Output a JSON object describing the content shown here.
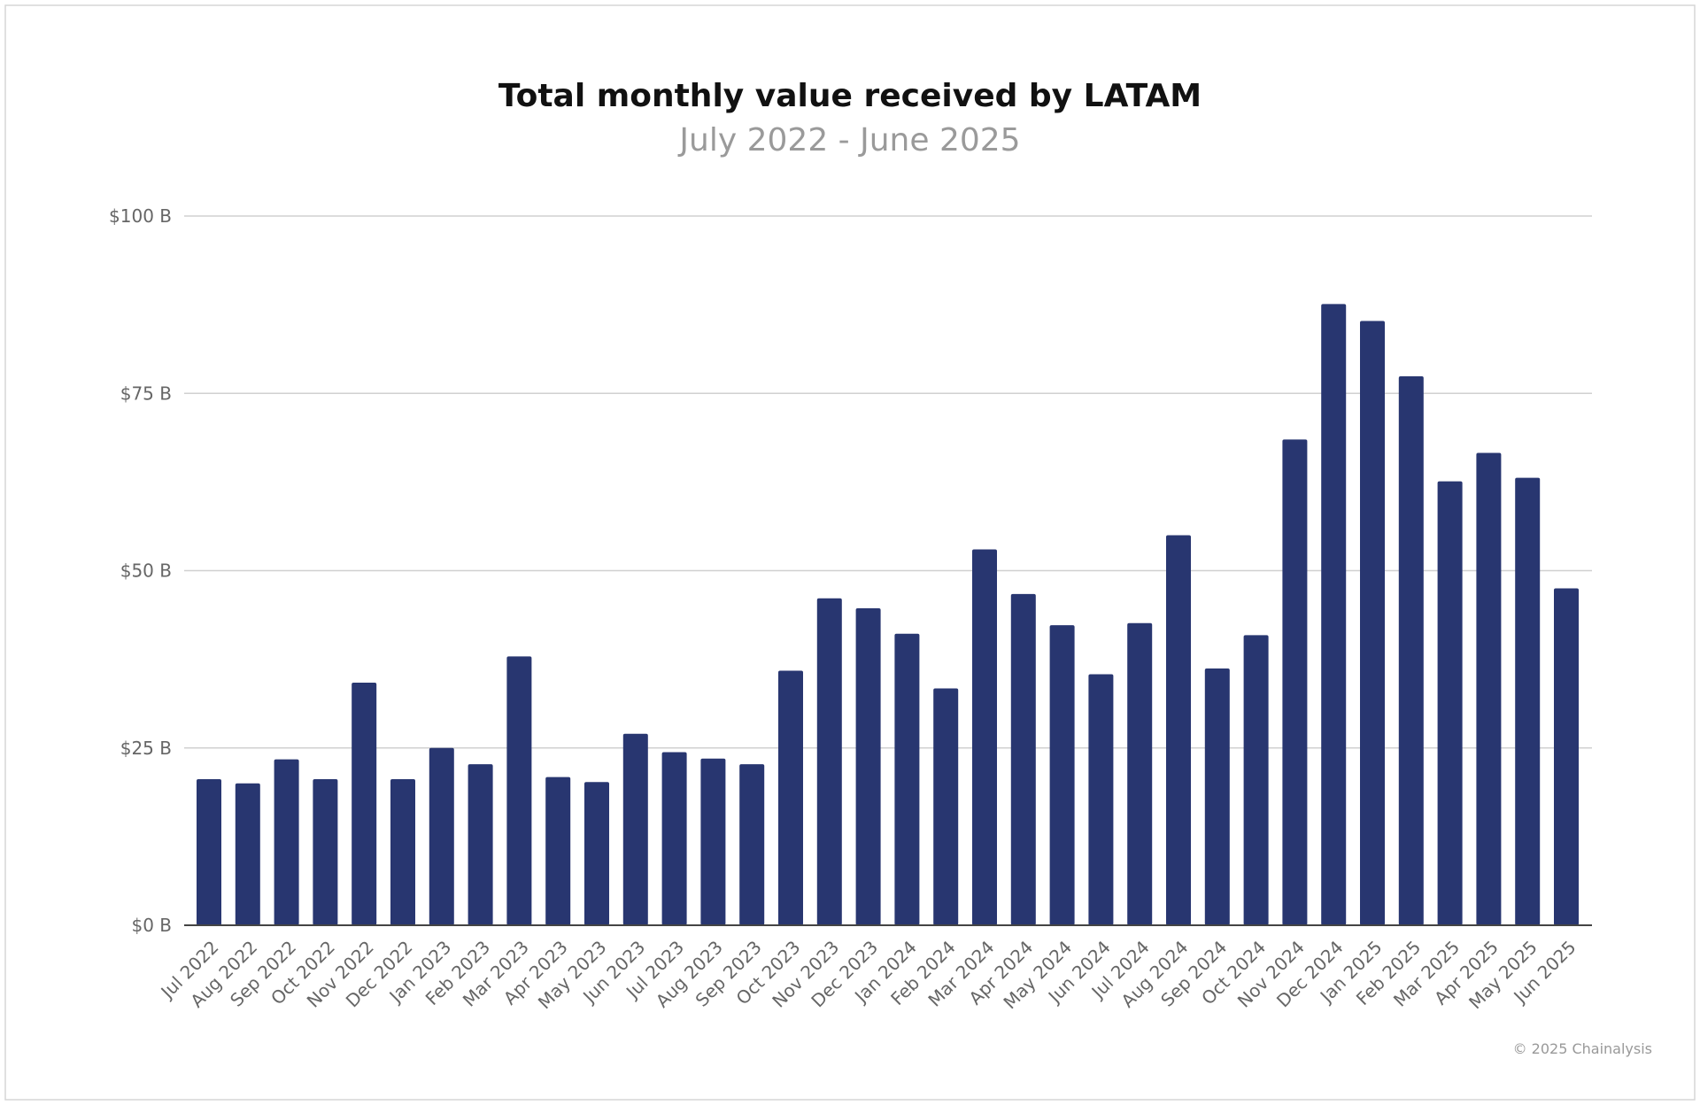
{
  "chart_data": {
    "type": "bar",
    "title": "Total monthly value received by LATAM",
    "subtitle": "July 2022 - June 2025",
    "xlabel": "",
    "ylabel": "",
    "ylim": [
      0,
      100
    ],
    "yticks": [
      0,
      25,
      50,
      75,
      100
    ],
    "ytick_labels": [
      "$0 B",
      "$25 B",
      "$50 B",
      "$75 B",
      "$100 B"
    ],
    "grid": true,
    "bar_color": "#283670",
    "categories": [
      "Jul 2022",
      "Aug 2022",
      "Sep 2022",
      "Oct 2022",
      "Nov 2022",
      "Dec 2022",
      "Jan 2023",
      "Feb 2023",
      "Mar 2023",
      "Apr 2023",
      "May 2023",
      "Jun 2023",
      "Jul 2023",
      "Aug 2023",
      "Sep 2023",
      "Oct 2023",
      "Nov 2023",
      "Dec 2023",
      "Jan 2024",
      "Feb 2024",
      "Mar 2024",
      "Apr 2024",
      "May 2024",
      "Jun 2024",
      "Jul 2024",
      "Aug 2024",
      "Sep 2024",
      "Oct 2024",
      "Nov 2024",
      "Dec 2024",
      "Jan 2025",
      "Feb 2025",
      "Mar 2025",
      "Apr 2025",
      "May 2025",
      "Jun 2025"
    ],
    "values": [
      20.6,
      20.0,
      23.4,
      20.6,
      34.2,
      20.6,
      25.0,
      22.7,
      37.9,
      20.9,
      20.2,
      27.0,
      24.4,
      23.5,
      22.7,
      35.9,
      46.1,
      44.7,
      41.1,
      33.4,
      53.0,
      46.7,
      42.3,
      35.4,
      42.6,
      55.0,
      36.2,
      40.9,
      68.5,
      87.6,
      85.2,
      77.4,
      62.6,
      66.6,
      63.1,
      47.5
    ]
  },
  "footer": "© 2025 Chainalysis"
}
